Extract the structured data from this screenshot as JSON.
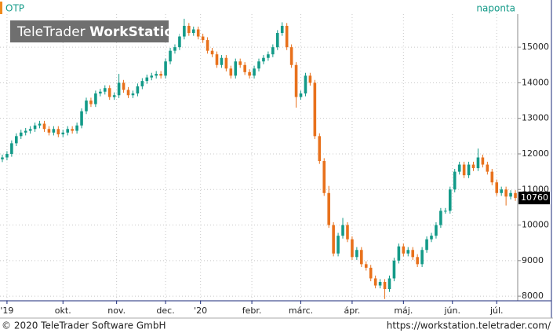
{
  "chart_data": {
    "type": "candlestick",
    "title": "OTP",
    "interval": "naponta",
    "watermark": [
      "TeleTrader",
      "WorkStation"
    ],
    "footer_left": "© 2020 TeleTrader Software GmbH",
    "footer_right": "https://workstation.teletrader.com/",
    "up_color": "#139a88",
    "down_color": "#e8711c",
    "xlim": [
      0,
      111
    ],
    "ylim": [
      7870,
      15930
    ],
    "grid": true,
    "yticks": [
      8000,
      9000,
      10000,
      11000,
      12000,
      13000,
      14000,
      15000
    ],
    "xticks": [
      {
        "value": 1.5,
        "label": "'19"
      },
      {
        "value": 13.5,
        "label": "okt."
      },
      {
        "value": 25,
        "label": "nov."
      },
      {
        "value": 35.5,
        "label": "dec."
      },
      {
        "value": 43,
        "label": "'20"
      },
      {
        "value": 54,
        "label": "febr."
      },
      {
        "value": 64.5,
        "label": "márc."
      },
      {
        "value": 75.5,
        "label": "ápr."
      },
      {
        "value": 86.5,
        "label": "máj."
      },
      {
        "value": 97,
        "label": "jún."
      },
      {
        "value": 106.5,
        "label": "júl."
      }
    ],
    "open": [
      11850,
      11900,
      12000,
      12300,
      12500,
      12600,
      12650,
      12700,
      12800,
      12850,
      12700,
      12600,
      12700,
      12550,
      12600,
      12700,
      12650,
      12800,
      13200,
      13500,
      13400,
      13700,
      13750,
      13850,
      13600,
      13650,
      14000,
      13800,
      13650,
      13700,
      13900,
      14050,
      14150,
      14200,
      14250,
      14200,
      14600,
      14900,
      15000,
      15300,
      15600,
      15400,
      15500,
      15300,
      15200,
      14900,
      14800,
      14500,
      14700,
      14400,
      14200,
      14600,
      14500,
      14300,
      14200,
      14400,
      14600,
      14700,
      14800,
      15000,
      15400,
      15600,
      15000,
      14500,
      13600,
      13700,
      14200,
      14000,
      12500,
      11800,
      10900,
      10000,
      9200,
      9700,
      10000,
      9600,
      9100,
      9300,
      8900,
      8800,
      8500,
      8300,
      8400,
      8200,
      8500,
      9000,
      9400,
      9200,
      9300,
      9100,
      8900,
      9300,
      9600,
      9700,
      10000,
      10400,
      10400,
      11000,
      11500,
      11700,
      11400,
      11700,
      11600,
      11900,
      11700,
      11500,
      11200,
      10900,
      11000,
      10800,
      10900
    ],
    "high": [
      11980,
      12080,
      12380,
      12580,
      12680,
      12730,
      12780,
      12880,
      12930,
      12930,
      12780,
      12780,
      12780,
      12680,
      12780,
      12780,
      12880,
      13280,
      13580,
      13580,
      13780,
      13830,
      13930,
      13930,
      13730,
      14250,
      14080,
      13880,
      13780,
      13980,
      14130,
      14230,
      14280,
      14330,
      14330,
      14680,
      14980,
      15080,
      15380,
      15800,
      15680,
      15580,
      15580,
      15380,
      15280,
      14980,
      14880,
      14780,
      14780,
      14480,
      14680,
      14680,
      14580,
      14380,
      14480,
      14680,
      14780,
      14880,
      15080,
      15480,
      15700,
      15680,
      15080,
      14580,
      13780,
      14280,
      14280,
      14080,
      12580,
      11880,
      11100,
      10080,
      9780,
      10200,
      10080,
      9680,
      9380,
      9380,
      8980,
      8880,
      8580,
      8480,
      8480,
      8580,
      9080,
      9480,
      9480,
      9380,
      9380,
      9180,
      9380,
      9680,
      9780,
      10080,
      10480,
      10480,
      11080,
      11580,
      11780,
      11780,
      11780,
      11780,
      12150,
      11980,
      11780,
      11580,
      11280,
      11080,
      11080,
      10980,
      10980
    ],
    "low": [
      11770,
      11820,
      11920,
      12220,
      12420,
      12520,
      12570,
      12620,
      12720,
      12620,
      12520,
      12520,
      12470,
      12470,
      12520,
      12570,
      12570,
      12720,
      13120,
      13320,
      13320,
      13620,
      13670,
      13520,
      13520,
      13570,
      13720,
      13570,
      13570,
      13620,
      13820,
      13970,
      14070,
      14120,
      14120,
      14120,
      14520,
      14820,
      14920,
      15220,
      15320,
      15320,
      15220,
      15120,
      14820,
      14720,
      14420,
      14420,
      14320,
      14120,
      14120,
      14420,
      14220,
      14120,
      14120,
      14320,
      14520,
      14620,
      14720,
      14920,
      15320,
      14920,
      14420,
      13300,
      13520,
      13620,
      13920,
      12420,
      11720,
      10820,
      9920,
      9120,
      9120,
      9620,
      9520,
      9020,
      9020,
      8820,
      8720,
      8420,
      8220,
      8220,
      7920,
      8120,
      8420,
      8920,
      9120,
      9120,
      9020,
      8820,
      8820,
      9220,
      9520,
      9620,
      9920,
      10320,
      10320,
      10920,
      11420,
      11320,
      11320,
      11520,
      11520,
      11620,
      11420,
      11120,
      10820,
      10820,
      10550,
      10720,
      10680
    ],
    "close": [
      11900,
      12000,
      12300,
      12500,
      12600,
      12650,
      12700,
      12800,
      12850,
      12700,
      12600,
      12700,
      12550,
      12600,
      12700,
      12650,
      12800,
      13200,
      13500,
      13400,
      13700,
      13750,
      13850,
      13600,
      13650,
      14000,
      13800,
      13650,
      13700,
      13900,
      14050,
      14150,
      14200,
      14250,
      14200,
      14600,
      14900,
      15000,
      15300,
      15600,
      15400,
      15500,
      15300,
      15200,
      14900,
      14800,
      14500,
      14700,
      14400,
      14200,
      14600,
      14500,
      14300,
      14200,
      14400,
      14600,
      14700,
      14800,
      15000,
      15400,
      15600,
      15000,
      14500,
      13600,
      13700,
      14200,
      14000,
      12500,
      11800,
      10900,
      10000,
      9200,
      9700,
      10000,
      9600,
      9100,
      9300,
      8900,
      8800,
      8500,
      8300,
      8400,
      8200,
      8500,
      9000,
      9400,
      9200,
      9300,
      9100,
      8900,
      9300,
      9600,
      9700,
      10000,
      10400,
      10400,
      11000,
      11500,
      11700,
      11400,
      11700,
      11600,
      11900,
      11700,
      11500,
      11200,
      10900,
      11000,
      10800,
      10900,
      10760
    ]
  }
}
